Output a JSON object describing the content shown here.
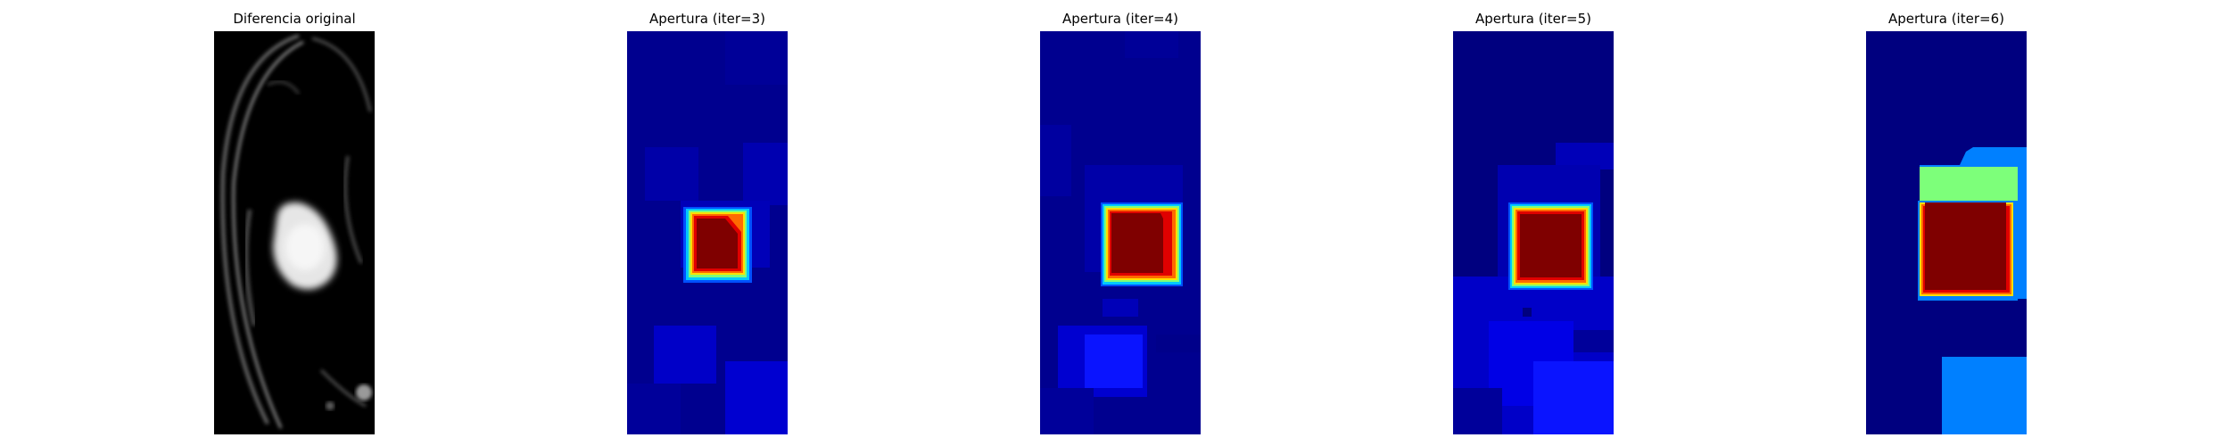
{
  "figure": {
    "panels": [
      {
        "title": "Diferencia original",
        "colormap": "gray"
      },
      {
        "title": "Apertura (iter=3)",
        "colormap": "jet"
      },
      {
        "title": "Apertura (iter=4)",
        "colormap": "jet"
      },
      {
        "title": "Apertura (iter=5)",
        "colormap": "jet"
      },
      {
        "title": "Apertura (iter=6)",
        "colormap": "jet"
      }
    ],
    "colors": {
      "background": "#ffffff",
      "jet_dark_blue": "#00007f",
      "jet_blue": "#0000e0",
      "jet_light_blue": "#0080ff",
      "jet_cyan": "#00e0ff",
      "jet_green": "#7dff7a",
      "jet_yellow": "#ffe000",
      "jet_orange": "#ff6a00",
      "jet_red": "#e00000",
      "jet_dark_red": "#7f0000"
    }
  }
}
